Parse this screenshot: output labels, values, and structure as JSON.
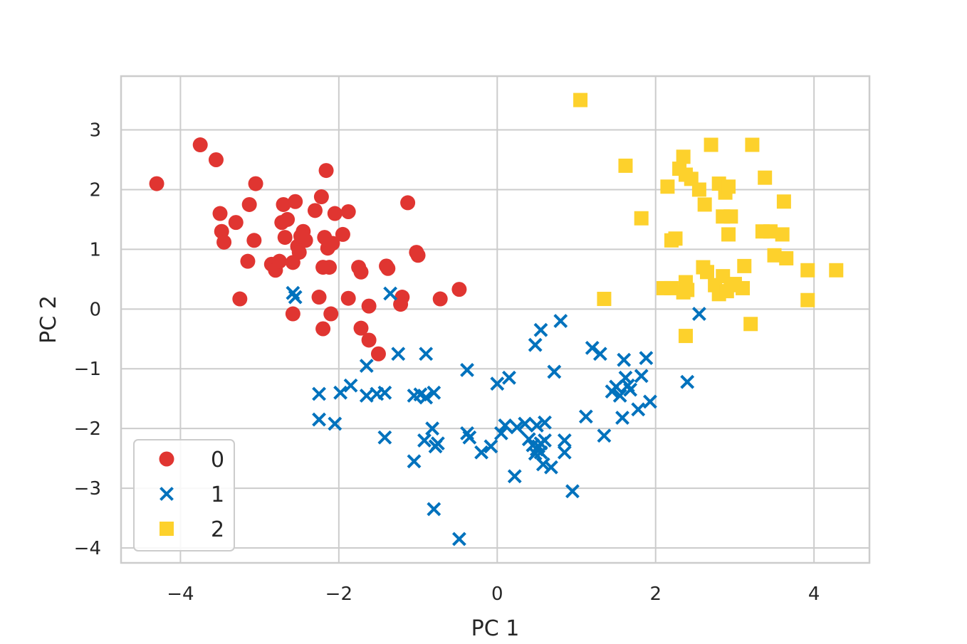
{
  "chart_data": {
    "type": "scatter",
    "title": "",
    "xlabel": "PC 1",
    "ylabel": "PC 2",
    "xlim": [
      -4.75,
      4.7
    ],
    "ylim": [
      -4.25,
      3.9
    ],
    "xticks": [
      -4,
      -2,
      0,
      2,
      4
    ],
    "yticks": [
      -4,
      -3,
      -2,
      -1,
      0,
      1,
      2,
      3
    ],
    "xtick_labels": [
      "−4",
      "−2",
      "0",
      "2",
      "4"
    ],
    "ytick_labels": [
      "−4",
      "−3",
      "−2",
      "−1",
      "0",
      "1",
      "2",
      "3"
    ],
    "grid": true,
    "legend_position": "lower-left",
    "series": [
      {
        "name": "0",
        "marker": "circle",
        "color": "#e03531",
        "points": [
          [
            -4.3,
            2.1
          ],
          [
            -3.75,
            2.75
          ],
          [
            -3.55,
            2.5
          ],
          [
            -3.5,
            1.6
          ],
          [
            -3.48,
            1.3
          ],
          [
            -3.45,
            1.12
          ],
          [
            -3.3,
            1.45
          ],
          [
            -3.13,
            1.75
          ],
          [
            -3.05,
            2.1
          ],
          [
            -3.07,
            1.15
          ],
          [
            -3.15,
            0.8
          ],
          [
            -3.25,
            0.17
          ],
          [
            -2.85,
            0.75
          ],
          [
            -2.8,
            0.65
          ],
          [
            -2.75,
            0.8
          ],
          [
            -2.7,
            1.75
          ],
          [
            -2.72,
            1.45
          ],
          [
            -2.65,
            1.5
          ],
          [
            -2.68,
            1.2
          ],
          [
            -2.55,
            1.8
          ],
          [
            -2.52,
            1.05
          ],
          [
            -2.5,
            0.95
          ],
          [
            -2.58,
            0.78
          ],
          [
            -2.45,
            1.3
          ],
          [
            -2.42,
            1.15
          ],
          [
            -2.48,
            1.22
          ],
          [
            -2.3,
            1.65
          ],
          [
            -2.22,
            1.88
          ],
          [
            -2.16,
            2.32
          ],
          [
            -2.18,
            1.2
          ],
          [
            -2.14,
            1.02
          ],
          [
            -2.12,
            0.7
          ],
          [
            -2.2,
            0.7
          ],
          [
            -2.05,
            1.6
          ],
          [
            -2.08,
            1.1
          ],
          [
            -1.95,
            1.25
          ],
          [
            -1.88,
            1.63
          ],
          [
            -2.25,
            0.2
          ],
          [
            -2.2,
            -0.33
          ],
          [
            -2.1,
            -0.08
          ],
          [
            -1.88,
            0.18
          ],
          [
            -1.75,
            0.7
          ],
          [
            -1.72,
            0.62
          ],
          [
            -1.72,
            -0.32
          ],
          [
            -1.62,
            -0.52
          ],
          [
            -1.62,
            0.05
          ],
          [
            -1.5,
            -0.75
          ],
          [
            -1.4,
            0.72
          ],
          [
            -1.38,
            0.68
          ],
          [
            -1.2,
            0.2
          ],
          [
            -1.22,
            0.08
          ],
          [
            -1.13,
            1.78
          ],
          [
            -1.0,
            0.9
          ],
          [
            -1.02,
            0.95
          ],
          [
            -0.72,
            0.17
          ],
          [
            -0.48,
            0.33
          ],
          [
            -2.58,
            -0.08
          ]
        ]
      },
      {
        "name": "1",
        "marker": "x",
        "color": "#0072bd",
        "points": [
          [
            -2.58,
            0.27
          ],
          [
            -2.55,
            0.2
          ],
          [
            -1.35,
            0.26
          ],
          [
            -1.25,
            -0.75
          ],
          [
            -0.9,
            -0.75
          ],
          [
            -1.65,
            -0.95
          ],
          [
            -2.25,
            -1.42
          ],
          [
            -2.25,
            -1.85
          ],
          [
            -2.05,
            -1.92
          ],
          [
            -1.98,
            -1.4
          ],
          [
            -1.85,
            -1.28
          ],
          [
            -1.65,
            -1.45
          ],
          [
            -1.52,
            -1.42
          ],
          [
            -1.42,
            -1.4
          ],
          [
            -1.42,
            -2.15
          ],
          [
            -1.05,
            -1.45
          ],
          [
            -0.97,
            -1.43
          ],
          [
            -0.9,
            -1.48
          ],
          [
            -0.8,
            -1.4
          ],
          [
            -0.92,
            -2.2
          ],
          [
            -1.05,
            -2.55
          ],
          [
            -0.82,
            -2.0
          ],
          [
            -0.75,
            -2.25
          ],
          [
            -0.78,
            -2.3
          ],
          [
            -0.8,
            -3.35
          ],
          [
            -0.48,
            -3.85
          ],
          [
            -0.38,
            -1.02
          ],
          [
            -0.38,
            -2.08
          ],
          [
            -0.35,
            -2.15
          ],
          [
            -0.2,
            -2.4
          ],
          [
            -0.08,
            -2.3
          ],
          [
            0.0,
            -1.25
          ],
          [
            0.15,
            -1.15
          ],
          [
            0.05,
            -2.08
          ],
          [
            0.1,
            -1.95
          ],
          [
            0.25,
            -1.98
          ],
          [
            0.22,
            -2.8
          ],
          [
            0.35,
            -1.92
          ],
          [
            0.4,
            -2.18
          ],
          [
            0.45,
            -2.28
          ],
          [
            0.48,
            -2.42
          ],
          [
            0.5,
            -2.35
          ],
          [
            0.52,
            -2.3
          ],
          [
            0.55,
            -2.25
          ],
          [
            0.55,
            -2.4
          ],
          [
            0.6,
            -2.2
          ],
          [
            0.58,
            -2.6
          ],
          [
            0.68,
            -2.65
          ],
          [
            0.6,
            -1.9
          ],
          [
            0.5,
            -1.95
          ],
          [
            0.48,
            -0.6
          ],
          [
            0.55,
            -0.35
          ],
          [
            0.72,
            -1.05
          ],
          [
            0.8,
            -0.2
          ],
          [
            0.85,
            -2.2
          ],
          [
            0.85,
            -2.4
          ],
          [
            0.95,
            -3.05
          ],
          [
            1.12,
            -1.8
          ],
          [
            1.2,
            -0.65
          ],
          [
            1.3,
            -0.75
          ],
          [
            1.35,
            -2.12
          ],
          [
            1.45,
            -1.38
          ],
          [
            1.5,
            -1.3
          ],
          [
            1.55,
            -1.45
          ],
          [
            1.58,
            -1.82
          ],
          [
            1.6,
            -0.85
          ],
          [
            1.62,
            -1.15
          ],
          [
            1.65,
            -1.28
          ],
          [
            1.68,
            -1.35
          ],
          [
            1.78,
            -1.68
          ],
          [
            1.82,
            -1.12
          ],
          [
            1.88,
            -0.82
          ],
          [
            1.93,
            -1.55
          ],
          [
            2.4,
            -1.22
          ],
          [
            2.55,
            -0.08
          ]
        ]
      },
      {
        "name": "2",
        "marker": "square",
        "color": "#fdd12c",
        "points": [
          [
            1.05,
            3.5
          ],
          [
            1.62,
            2.4
          ],
          [
            1.82,
            1.52
          ],
          [
            1.35,
            0.17
          ],
          [
            2.15,
            2.05
          ],
          [
            2.2,
            1.15
          ],
          [
            2.25,
            1.18
          ],
          [
            2.3,
            2.35
          ],
          [
            2.38,
            2.25
          ],
          [
            2.35,
            2.55
          ],
          [
            2.45,
            2.18
          ],
          [
            2.55,
            2.0
          ],
          [
            2.62,
            1.75
          ],
          [
            2.7,
            2.75
          ],
          [
            2.8,
            2.1
          ],
          [
            2.88,
            1.95
          ],
          [
            2.92,
            2.05
          ],
          [
            2.85,
            1.55
          ],
          [
            2.95,
            1.55
          ],
          [
            2.92,
            1.25
          ],
          [
            3.22,
            2.75
          ],
          [
            3.38,
            2.2
          ],
          [
            3.62,
            1.8
          ],
          [
            3.35,
            1.3
          ],
          [
            3.45,
            1.3
          ],
          [
            3.6,
            1.25
          ],
          [
            3.5,
            0.9
          ],
          [
            3.65,
            0.85
          ],
          [
            3.92,
            0.65
          ],
          [
            4.28,
            0.65
          ],
          [
            3.92,
            0.15
          ],
          [
            2.1,
            0.35
          ],
          [
            2.2,
            0.35
          ],
          [
            2.35,
            0.28
          ],
          [
            2.38,
            0.45
          ],
          [
            2.4,
            0.32
          ],
          [
            2.6,
            0.7
          ],
          [
            2.65,
            0.62
          ],
          [
            2.75,
            0.4
          ],
          [
            2.8,
            0.25
          ],
          [
            2.85,
            0.55
          ],
          [
            2.9,
            0.3
          ],
          [
            2.95,
            0.4
          ],
          [
            3.0,
            0.42
          ],
          [
            3.1,
            0.35
          ],
          [
            3.12,
            0.72
          ],
          [
            3.2,
            -0.25
          ],
          [
            2.38,
            -0.45
          ]
        ]
      }
    ]
  }
}
